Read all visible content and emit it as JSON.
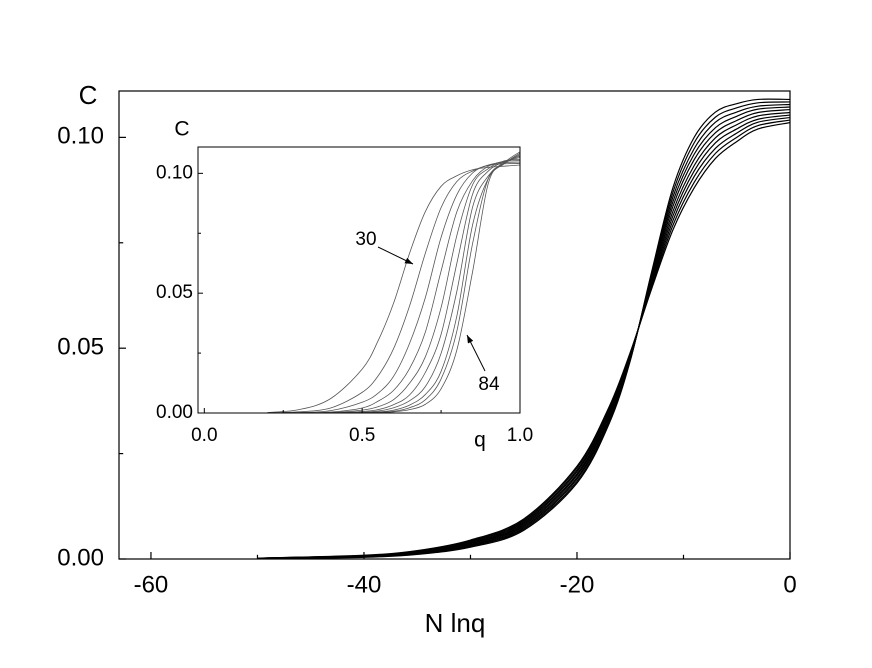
{
  "chart_data": [
    {
      "type": "line",
      "xlabel": "N lnq",
      "ylabel": "C",
      "x": [
        -50,
        -40,
        -35,
        -30,
        -25,
        -20,
        -17,
        -15,
        -13,
        -11,
        -9,
        -7,
        -5,
        -3,
        0
      ],
      "xlim": [
        -63,
        0
      ],
      "xticks": [
        -60,
        -40,
        -20,
        0
      ],
      "ylim": [
        0,
        0.111
      ],
      "yticks": [
        {
          "value": 0,
          "label": "0.00"
        },
        {
          "value": 0.05,
          "label": "0.05"
        },
        {
          "value": 0.1,
          "label": "0.10"
        }
      ],
      "series": [
        {
          "color": "#000000",
          "values": [
            0.0002,
            0.0009,
            0.002,
            0.0045,
            0.0095,
            0.022,
            0.036,
            0.049,
            0.064,
            0.078,
            0.088,
            0.095,
            0.099,
            0.102,
            0.1035
          ]
        },
        {
          "color": "#000000",
          "values": [
            0.0002,
            0.0008,
            0.0019,
            0.0043,
            0.0092,
            0.0216,
            0.0356,
            0.0488,
            0.0644,
            0.0791,
            0.0893,
            0.0962,
            0.1,
            0.1028,
            0.1041
          ]
        },
        {
          "color": "#000000",
          "values": [
            0.0002,
            0.0008,
            0.0018,
            0.0041,
            0.0089,
            0.0211,
            0.0351,
            0.0486,
            0.0649,
            0.0802,
            0.0907,
            0.0974,
            0.101,
            0.1036,
            0.1047
          ]
        },
        {
          "color": "#000000",
          "values": [
            0.0002,
            0.0007,
            0.0017,
            0.0039,
            0.0086,
            0.0207,
            0.0347,
            0.0483,
            0.0653,
            0.0813,
            0.092,
            0.0987,
            0.102,
            0.1043,
            0.1053
          ]
        },
        {
          "color": "#000000",
          "values": [
            0.0002,
            0.0007,
            0.0016,
            0.0037,
            0.0083,
            0.0202,
            0.0342,
            0.0481,
            0.0658,
            0.0824,
            0.0933,
            0.0999,
            0.103,
            0.1051,
            0.1059
          ]
        },
        {
          "color": "#000000",
          "values": [
            0.0001,
            0.0006,
            0.0015,
            0.0036,
            0.008,
            0.0198,
            0.0338,
            0.0479,
            0.0662,
            0.0836,
            0.0947,
            0.1011,
            0.104,
            0.1059,
            0.1066
          ]
        },
        {
          "color": "#000000",
          "values": [
            0.0001,
            0.0006,
            0.0014,
            0.0034,
            0.0077,
            0.0193,
            0.0333,
            0.0477,
            0.0667,
            0.0847,
            0.096,
            0.1023,
            0.105,
            0.1067,
            0.1072
          ]
        },
        {
          "color": "#000000",
          "values": [
            0.0001,
            0.0005,
            0.0013,
            0.0032,
            0.0074,
            0.0189,
            0.0329,
            0.0474,
            0.0671,
            0.0858,
            0.0973,
            0.1036,
            0.106,
            0.1074,
            0.1078
          ]
        },
        {
          "color": "#000000",
          "values": [
            0.0001,
            0.0005,
            0.0012,
            0.003,
            0.0071,
            0.0184,
            0.0324,
            0.0472,
            0.0676,
            0.0869,
            0.0987,
            0.1048,
            0.107,
            0.1082,
            0.1084
          ]
        },
        {
          "color": "#000000",
          "values": [
            0.0001,
            0.0004,
            0.0011,
            0.0028,
            0.0068,
            0.018,
            0.032,
            0.047,
            0.068,
            0.088,
            0.1,
            0.106,
            0.108,
            0.109,
            0.109
          ]
        }
      ]
    },
    {
      "type": "line",
      "xlabel": "q",
      "ylabel": "C",
      "x": [
        0.2,
        0.3,
        0.4,
        0.5,
        0.55,
        0.6,
        0.65,
        0.7,
        0.75,
        0.8,
        0.85,
        0.9,
        0.95,
        1.0
      ],
      "xlim": [
        -0.02,
        1.0
      ],
      "xticks": [
        {
          "value": 0,
          "label": "0.0"
        },
        {
          "value": 0.5,
          "label": "0.5"
        },
        {
          "value": 1,
          "label": "1.0"
        }
      ],
      "ylim": [
        0,
        0.111
      ],
      "yticks": [
        {
          "value": 0,
          "label": "0.00"
        },
        {
          "value": 0.05,
          "label": "0.05"
        },
        {
          "value": 0.1,
          "label": "0.10"
        }
      ],
      "annotations": [
        "30",
        "84"
      ],
      "series": [
        {
          "color": "#555555",
          "values": [
            0.0002,
            0.0014,
            0.006,
            0.0183,
            0.03,
            0.046,
            0.0666,
            0.084,
            0.0946,
            0.099,
            0.1015,
            0.1025,
            0.103,
            0.1035
          ]
        },
        {
          "color": "#555555",
          "values": [
            0.0001,
            0.0005,
            0.0021,
            0.0086,
            0.0154,
            0.027,
            0.0446,
            0.0666,
            0.0857,
            0.0966,
            0.101,
            0.1033,
            0.104,
            0.1041
          ]
        },
        {
          "color": "#555555",
          "values": [
            0,
            0.0002,
            0.001,
            0.0045,
            0.0082,
            0.0154,
            0.029,
            0.0481,
            0.0733,
            0.0911,
            0.1002,
            0.1035,
            0.1045,
            0.1047
          ]
        },
        {
          "color": "#555555",
          "values": [
            0,
            0.0001,
            0.0004,
            0.0021,
            0.0049,
            0.0095,
            0.0185,
            0.0337,
            0.0592,
            0.084,
            0.097,
            0.103,
            0.105,
            0.1053
          ]
        },
        {
          "color": "#555555",
          "values": [
            0,
            0.0001,
            0.0002,
            0.0012,
            0.0026,
            0.0056,
            0.0124,
            0.0234,
            0.044,
            0.0741,
            0.0953,
            0.102,
            0.1052,
            0.1059
          ]
        },
        {
          "color": "#555555",
          "values": [
            0,
            0,
            0.0001,
            0.0006,
            0.0014,
            0.0035,
            0.0075,
            0.0169,
            0.0328,
            0.0625,
            0.0914,
            0.101,
            0.1048,
            0.1066
          ]
        },
        {
          "color": "#555555",
          "values": [
            0,
            0,
            0,
            0.0003,
            0.0008,
            0.0022,
            0.0051,
            0.011,
            0.0249,
            0.0508,
            0.086,
            0.099,
            0.1045,
            0.1072
          ]
        },
        {
          "color": "#555555",
          "values": [
            0,
            0,
            0,
            0.0002,
            0.0004,
            0.0012,
            0.0033,
            0.0077,
            0.0174,
            0.0405,
            0.0786,
            0.098,
            0.104,
            0.1078
          ]
        },
        {
          "color": "#555555",
          "values": [
            0,
            0,
            0,
            0.0001,
            0.0003,
            0.0007,
            0.0022,
            0.0055,
            0.0142,
            0.0342,
            0.0708,
            0.0979,
            0.1041,
            0.1084
          ]
        },
        {
          "color": "#555555",
          "values": [
            0,
            0,
            0,
            0.0001,
            0.0002,
            0.0005,
            0.0014,
            0.0036,
            0.0101,
            0.0263,
            0.0591,
            0.096,
            0.1044,
            0.109
          ]
        }
      ]
    }
  ]
}
